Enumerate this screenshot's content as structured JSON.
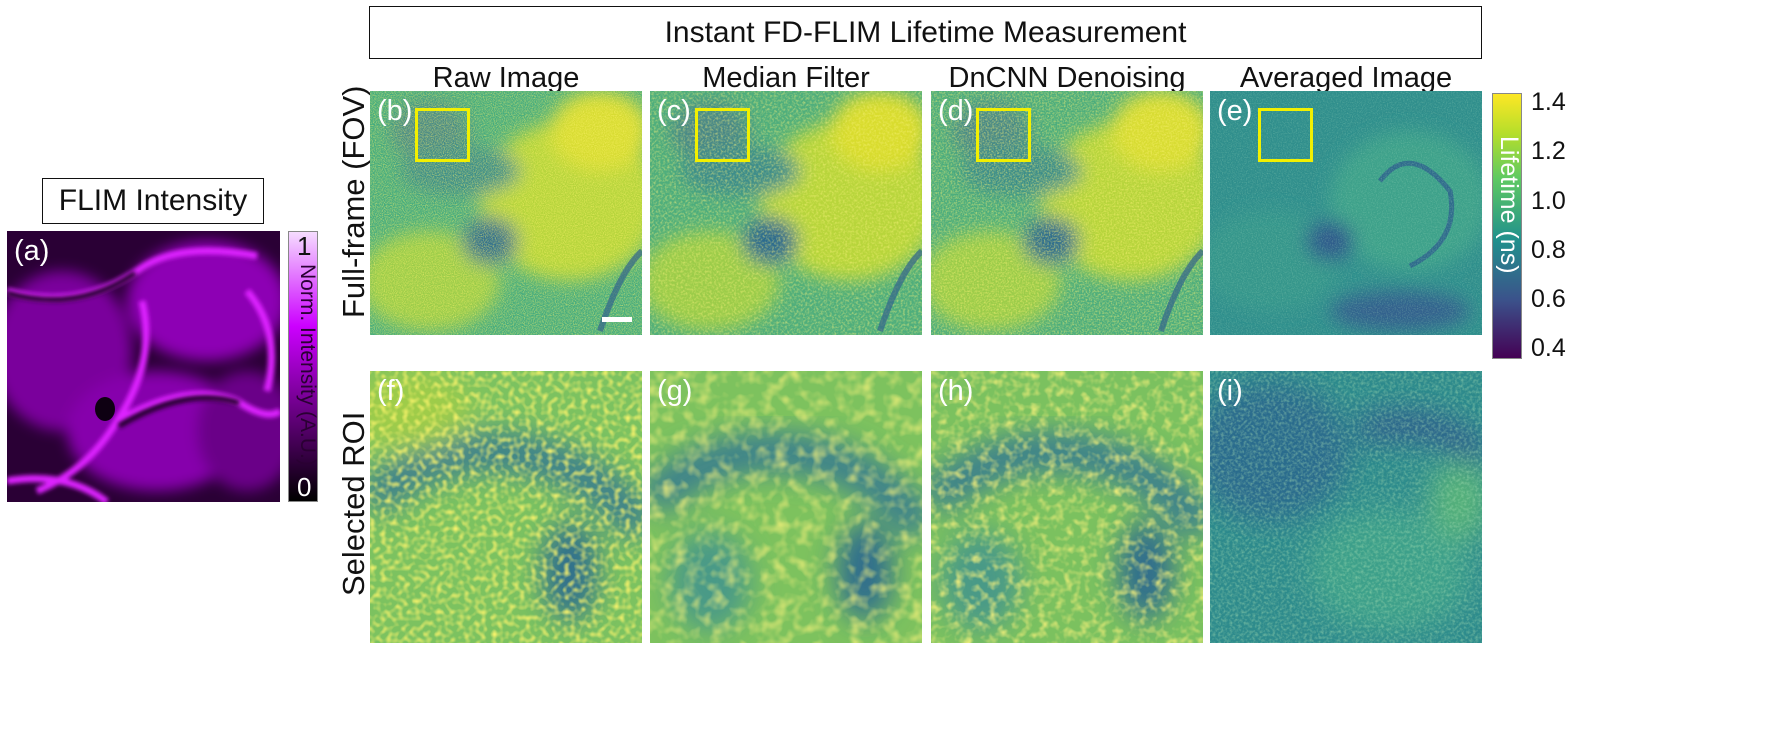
{
  "flim_intensity": {
    "title": "FLIM Intensity",
    "panel_label": "(a)",
    "colorbar": {
      "label": "Norm. Intensity (A.U.)",
      "max_tick": "1",
      "min_tick": "0",
      "colors": [
        "#000000",
        "#cc00ff",
        "#f6dcff"
      ]
    }
  },
  "lifetime": {
    "title": "Instant FD-FLIM Lifetime Measurement",
    "columns": [
      "Raw Image",
      "Median Filter",
      "DnCNN Denoising",
      "Averaged Image"
    ],
    "rows": [
      "Full-frame (FOV)",
      "Selected ROI"
    ],
    "panel_labels": {
      "fov": [
        "(b)",
        "(c)",
        "(d)",
        "(e)"
      ],
      "roi": [
        "(f)",
        "(g)",
        "(h)",
        "(i)"
      ]
    },
    "colorbar": {
      "label": "Lifetime (ns)",
      "ticks": [
        "1.4",
        "1.2",
        "1.0",
        "0.8",
        "0.6",
        "0.4"
      ],
      "colors": [
        "#fde725",
        "#5ec962",
        "#21918c",
        "#3b528b",
        "#440154"
      ],
      "roi_box_color": "#f2f000"
    }
  }
}
